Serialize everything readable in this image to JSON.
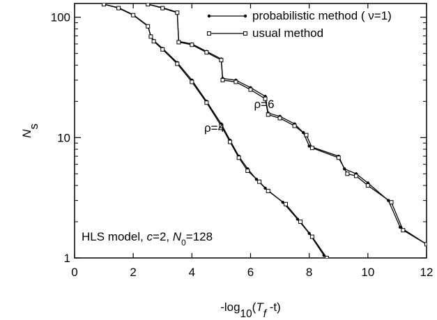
{
  "chart_data": {
    "type": "line",
    "y_label": [
      {
        "text": "N",
        "italic": true
      },
      {
        "text": "s",
        "sub": true
      }
    ],
    "x_label": [
      {
        "text": "-log"
      },
      {
        "text": "10",
        "sub": true
      },
      {
        "text": "("
      },
      {
        "text": "T",
        "italic": true
      },
      {
        "text": "f",
        "sub": true,
        "italic": true
      },
      {
        "text": " -t)"
      }
    ],
    "annotation": [
      {
        "text": "HLS model, "
      },
      {
        "text": "c",
        "italic": true
      },
      {
        "text": "=2, "
      },
      {
        "text": "N",
        "italic": true
      },
      {
        "text": "0",
        "sub": true
      },
      {
        "text": "=128"
      }
    ],
    "curve_labels": [
      "ρ=4",
      "ρ=6"
    ],
    "xlim": [
      0,
      12
    ],
    "xticks": [
      0,
      2,
      4,
      6,
      8,
      10,
      12
    ],
    "ylim": [
      1,
      130
    ],
    "yticks": [
      1,
      10,
      100
    ],
    "log_y": true,
    "legend": "upper right",
    "series": [
      {
        "name": "probabilistic method ( ν=1)",
        "color": "#000000",
        "marker": "dot",
        "curves": [
          {
            "x": [
              1.0,
              1.5,
              2.0,
              2.5,
              2.6,
              2.7,
              3.0,
              3.5,
              4.0,
              4.5,
              5.0,
              5.3,
              5.6,
              5.9,
              6.2,
              6.5,
              7.1,
              7.6,
              8.0,
              8.5
            ],
            "values": [
              128,
              120,
              105,
              85,
              70,
              64,
              55,
              42,
              30,
              20,
              13,
              9.5,
              7,
              5.5,
              4.5,
              3.8,
              2.9,
              2.1,
              1.6,
              1.05
            ]
          },
          {
            "x": [
              2.5,
              3.0,
              3.5,
              3.55,
              4.0,
              4.5,
              5.0,
              5.05,
              5.5,
              6.0,
              6.5,
              6.6,
              7.0,
              7.5,
              7.8,
              8.0,
              9.0,
              9.2,
              9.6,
              10.0,
              10.7,
              11.1,
              12.0
            ],
            "values": [
              128,
              120,
              110,
              63,
              60,
              52,
              45,
              31,
              30,
              26,
              22,
              16,
              15,
              13,
              11,
              8.5,
              7,
              5.5,
              5,
              4.2,
              3.0,
              1.8,
              1.3
            ]
          }
        ]
      },
      {
        "name": "usual method",
        "color": "#000000",
        "marker": "square",
        "curves": [
          {
            "x": [
              1.0,
              1.5,
              2.0,
              2.5,
              2.6,
              2.7,
              3.0,
              3.5,
              4.0,
              4.5,
              5.0,
              5.3,
              5.6,
              5.9,
              6.3,
              6.6,
              7.2,
              7.7,
              8.1,
              8.6
            ],
            "values": [
              128,
              119,
              104,
              84,
              69,
              63,
              54,
              41,
              29,
              19.5,
              12.5,
              9.2,
              6.8,
              5.3,
              4.3,
              3.6,
              2.8,
              2.0,
              1.5,
              1.0
            ]
          },
          {
            "x": [
              2.5,
              3.0,
              3.5,
              3.55,
              4.0,
              4.5,
              5.0,
              5.05,
              5.5,
              6.0,
              6.5,
              6.6,
              7.0,
              7.5,
              7.9,
              8.1,
              9.0,
              9.3,
              9.6,
              10.0,
              10.8,
              11.2,
              12.0
            ],
            "values": [
              128,
              119,
              109,
              62,
              59,
              51,
              44,
              30,
              29,
              25,
              21,
              15.5,
              14.5,
              12.5,
              10.5,
              8.2,
              6.8,
              5.0,
              4.8,
              4.0,
              2.9,
              1.7,
              1.3
            ]
          }
        ]
      }
    ]
  }
}
